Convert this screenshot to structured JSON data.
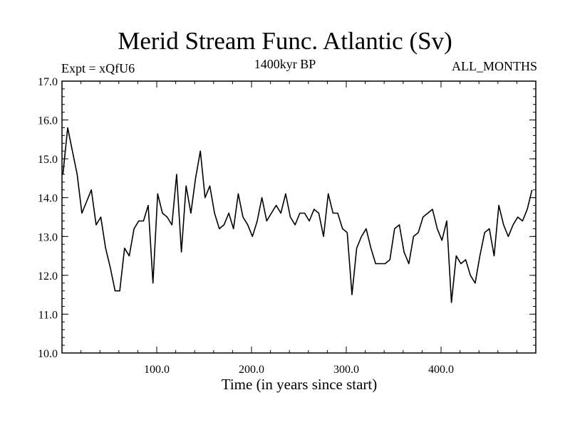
{
  "header": {
    "title": "Merid Stream Func. Atlantic (Sv)",
    "expt_label": "Expt = xQfU6",
    "period_label": "1400kyr BP",
    "months_label": "ALL_MONTHS"
  },
  "chart_data": {
    "type": "line",
    "title": "Merid Stream Func. Atlantic (Sv)",
    "xlabel": "Time (in years since start)",
    "ylabel": "",
    "xlim": [
      0,
      500
    ],
    "ylim": [
      10.0,
      17.0
    ],
    "x_ticks": [
      100,
      200,
      300,
      400
    ],
    "x_tick_labels": [
      "100.0",
      "200.0",
      "300.0",
      "400.0"
    ],
    "y_ticks": [
      10,
      11,
      12,
      13,
      14,
      15,
      16,
      17
    ],
    "y_tick_labels": [
      "10.0",
      "11.0",
      "12.0",
      "13.0",
      "14.0",
      "15.0",
      "16.0",
      "17.0"
    ],
    "grid": false,
    "series": [
      {
        "name": "Merid Stream Func. Atlantic",
        "x_start": 1,
        "x_step": 5,
        "values": [
          14.6,
          15.8,
          15.2,
          14.6,
          13.6,
          13.9,
          14.2,
          13.3,
          13.5,
          12.7,
          12.2,
          11.6,
          11.6,
          12.7,
          12.5,
          13.2,
          13.4,
          13.4,
          13.8,
          11.8,
          14.1,
          13.6,
          13.5,
          13.3,
          14.6,
          12.6,
          14.3,
          13.6,
          14.5,
          15.2,
          14.0,
          14.3,
          13.6,
          13.2,
          13.3,
          13.6,
          13.2,
          14.1,
          13.5,
          13.3,
          13.0,
          13.4,
          14.0,
          13.4,
          13.6,
          13.8,
          13.6,
          14.1,
          13.5,
          13.3,
          13.6,
          13.6,
          13.4,
          13.7,
          13.6,
          13.0,
          14.1,
          13.6,
          13.6,
          13.2,
          13.1,
          11.5,
          12.7,
          13.0,
          13.2,
          12.7,
          12.3,
          12.3,
          12.3,
          12.4,
          13.2,
          13.3,
          12.6,
          12.3,
          13.0,
          13.1,
          13.5,
          13.6,
          13.7,
          13.2,
          12.9,
          13.4,
          11.3,
          12.5,
          12.3,
          12.4,
          12.0,
          11.8,
          12.5,
          13.1,
          13.2,
          12.5,
          13.8,
          13.3,
          13.0,
          13.3,
          13.5,
          13.4,
          13.7,
          14.2
        ]
      }
    ]
  }
}
